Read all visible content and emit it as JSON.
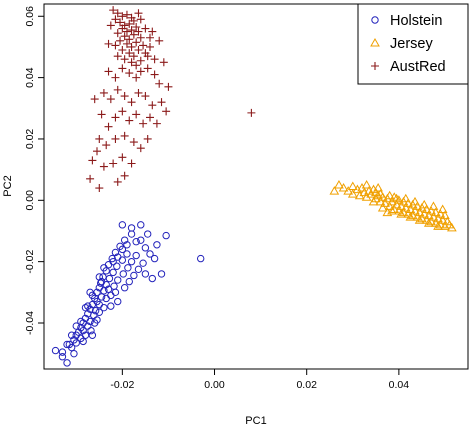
{
  "chart_data": {
    "type": "scatter",
    "title": "",
    "xlabel": "PC1",
    "ylabel": "PC2",
    "xlim": [
      -0.037,
      0.055
    ],
    "ylim": [
      -0.055,
      0.064
    ],
    "x_ticks": [
      "-0.02",
      "0.00",
      "0.02",
      "0.04"
    ],
    "x_tick_values": [
      -0.02,
      0.0,
      0.02,
      0.04
    ],
    "y_ticks": [
      "-0.04",
      "-0.02",
      "0.00",
      "0.02",
      "0.04",
      "0.06"
    ],
    "y_tick_values": [
      -0.04,
      -0.02,
      0.0,
      0.02,
      0.04,
      0.06
    ],
    "grid": false,
    "legend_position": "top-right",
    "series": [
      {
        "name": "Holstein",
        "marker": "circle",
        "color": "#2222bb",
        "points": [
          [
            -0.0345,
            -0.049
          ],
          [
            -0.033,
            -0.051
          ],
          [
            -0.032,
            -0.053
          ],
          [
            -0.033,
            -0.0495
          ],
          [
            -0.0315,
            -0.047
          ],
          [
            -0.031,
            -0.048
          ],
          [
            -0.0305,
            -0.0455
          ],
          [
            -0.03,
            -0.044
          ],
          [
            -0.03,
            -0.0465
          ],
          [
            -0.0295,
            -0.043
          ],
          [
            -0.029,
            -0.0415
          ],
          [
            -0.029,
            -0.045
          ],
          [
            -0.0285,
            -0.04
          ],
          [
            -0.0285,
            -0.0425
          ],
          [
            -0.028,
            -0.044
          ],
          [
            -0.028,
            -0.0385
          ],
          [
            -0.0275,
            -0.037
          ],
          [
            -0.0275,
            -0.041
          ],
          [
            -0.027,
            -0.0355
          ],
          [
            -0.027,
            -0.0395
          ],
          [
            -0.0268,
            -0.0425
          ],
          [
            -0.0265,
            -0.034
          ],
          [
            -0.0262,
            -0.0375
          ],
          [
            -0.026,
            -0.032
          ],
          [
            -0.0258,
            -0.036
          ],
          [
            -0.0255,
            -0.03
          ],
          [
            -0.0255,
            -0.039
          ],
          [
            -0.025,
            -0.0285
          ],
          [
            -0.025,
            -0.034
          ],
          [
            -0.0247,
            -0.027
          ],
          [
            -0.0245,
            -0.0315
          ],
          [
            -0.0242,
            -0.025
          ],
          [
            -0.024,
            -0.0295
          ],
          [
            -0.024,
            -0.035
          ],
          [
            -0.0235,
            -0.023
          ],
          [
            -0.0235,
            -0.0275
          ],
          [
            -0.023,
            -0.021
          ],
          [
            -0.0228,
            -0.0255
          ],
          [
            -0.0225,
            -0.031
          ],
          [
            -0.0222,
            -0.019
          ],
          [
            -0.022,
            -0.0235
          ],
          [
            -0.0218,
            -0.028
          ],
          [
            -0.0215,
            -0.017
          ],
          [
            -0.0212,
            -0.0215
          ],
          [
            -0.021,
            -0.026
          ],
          [
            -0.0205,
            -0.015
          ],
          [
            -0.02,
            -0.0195
          ],
          [
            -0.0198,
            -0.024
          ],
          [
            -0.0195,
            -0.013
          ],
          [
            -0.019,
            -0.0175
          ],
          [
            -0.0188,
            -0.022
          ],
          [
            -0.0185,
            -0.0265
          ],
          [
            -0.018,
            -0.02
          ],
          [
            -0.0175,
            -0.0245
          ],
          [
            -0.017,
            -0.018
          ],
          [
            -0.0165,
            -0.0225
          ],
          [
            -0.016,
            -0.013
          ],
          [
            -0.0155,
            -0.0205
          ],
          [
            -0.015,
            -0.024
          ],
          [
            -0.0145,
            -0.011
          ],
          [
            -0.014,
            -0.0175
          ],
          [
            -0.0135,
            -0.0255
          ],
          [
            -0.0125,
            -0.0145
          ],
          [
            -0.0115,
            -0.024
          ],
          [
            -0.0105,
            -0.0115
          ],
          [
            -0.003,
            -0.019
          ],
          [
            -0.018,
            -0.009
          ],
          [
            -0.02,
            -0.008
          ],
          [
            -0.016,
            -0.008
          ],
          [
            -0.026,
            -0.04
          ],
          [
            -0.029,
            -0.0395
          ],
          [
            -0.03,
            -0.041
          ],
          [
            -0.0275,
            -0.0345
          ],
          [
            -0.0265,
            -0.031
          ],
          [
            -0.0255,
            -0.033
          ],
          [
            -0.0245,
            -0.0265
          ],
          [
            -0.023,
            -0.029
          ],
          [
            -0.022,
            -0.02
          ],
          [
            -0.021,
            -0.0185
          ],
          [
            -0.02,
            -0.016
          ],
          [
            -0.019,
            -0.0145
          ],
          [
            -0.024,
            -0.022
          ],
          [
            -0.025,
            -0.025
          ],
          [
            -0.027,
            -0.03
          ],
          [
            -0.028,
            -0.035
          ],
          [
            -0.031,
            -0.044
          ],
          [
            -0.032,
            -0.047
          ],
          [
            -0.0305,
            -0.05
          ],
          [
            -0.0285,
            -0.046
          ],
          [
            -0.0265,
            -0.044
          ],
          [
            -0.0225,
            -0.0345
          ],
          [
            -0.021,
            -0.033
          ],
          [
            -0.025,
            -0.0365
          ],
          [
            -0.0235,
            -0.032
          ],
          [
            -0.0215,
            -0.03
          ],
          [
            -0.0195,
            -0.0285
          ],
          [
            -0.017,
            -0.0135
          ],
          [
            -0.018,
            -0.011
          ],
          [
            -0.015,
            -0.0155
          ],
          [
            -0.013,
            -0.019
          ]
        ]
      },
      {
        "name": "Jersey",
        "marker": "triangle",
        "color": "#f0a000",
        "points": [
          [
            0.026,
            0.003
          ],
          [
            0.027,
            0.005
          ],
          [
            0.028,
            0.004
          ],
          [
            0.029,
            0.003
          ],
          [
            0.03,
            0.002
          ],
          [
            0.03,
            0.0045
          ],
          [
            0.031,
            0.0035
          ],
          [
            0.0315,
            0.0015
          ],
          [
            0.032,
            0.004
          ],
          [
            0.0325,
            0.0025
          ],
          [
            0.033,
            0.001
          ],
          [
            0.0335,
            0.003
          ],
          [
            0.034,
            0.002
          ],
          [
            0.0345,
            0.0035
          ],
          [
            0.035,
            0.0005
          ],
          [
            0.035,
            0.0025
          ],
          [
            0.0355,
            0.0015
          ],
          [
            0.036,
            -0.0005
          ],
          [
            0.036,
            0.002
          ],
          [
            0.0365,
            0.001
          ],
          [
            0.037,
            -0.001
          ],
          [
            0.0375,
            0.0005
          ],
          [
            0.038,
            0.0015
          ],
          [
            0.038,
            -0.002
          ],
          [
            0.0385,
            -0.0005
          ],
          [
            0.039,
            0.001
          ],
          [
            0.039,
            -0.003
          ],
          [
            0.0395,
            -0.0015
          ],
          [
            0.04,
            0.0
          ],
          [
            0.04,
            -0.0035
          ],
          [
            0.0405,
            -0.002
          ],
          [
            0.041,
            -0.0005
          ],
          [
            0.041,
            -0.004
          ],
          [
            0.0415,
            -0.0025
          ],
          [
            0.042,
            -0.001
          ],
          [
            0.042,
            -0.0045
          ],
          [
            0.0425,
            -0.003
          ],
          [
            0.043,
            -0.0015
          ],
          [
            0.043,
            -0.005
          ],
          [
            0.0435,
            -0.0035
          ],
          [
            0.044,
            -0.002
          ],
          [
            0.044,
            -0.0055
          ],
          [
            0.0445,
            -0.004
          ],
          [
            0.045,
            -0.0025
          ],
          [
            0.045,
            -0.006
          ],
          [
            0.0455,
            -0.0045
          ],
          [
            0.046,
            -0.003
          ],
          [
            0.046,
            -0.0065
          ],
          [
            0.0465,
            -0.005
          ],
          [
            0.047,
            -0.0035
          ],
          [
            0.047,
            -0.007
          ],
          [
            0.0475,
            -0.0055
          ],
          [
            0.048,
            -0.004
          ],
          [
            0.048,
            -0.0075
          ],
          [
            0.0485,
            -0.006
          ],
          [
            0.049,
            -0.0045
          ],
          [
            0.049,
            -0.008
          ],
          [
            0.0495,
            -0.0065
          ],
          [
            0.05,
            -0.005
          ],
          [
            0.05,
            -0.0085
          ],
          [
            0.0505,
            -0.007
          ],
          [
            0.051,
            -0.008
          ],
          [
            0.0515,
            -0.009
          ],
          [
            0.0385,
            -0.0035
          ],
          [
            0.0375,
            -0.004
          ],
          [
            0.0395,
            0.0005
          ],
          [
            0.0405,
            -0.0045
          ],
          [
            0.0425,
            -0.0055
          ],
          [
            0.0445,
            -0.0065
          ],
          [
            0.0465,
            -0.0075
          ],
          [
            0.0455,
            -0.0015
          ],
          [
            0.0435,
            -0.0005
          ],
          [
            0.0415,
            0.0005
          ],
          [
            0.0475,
            -0.002
          ],
          [
            0.0495,
            -0.003
          ],
          [
            0.0485,
            -0.0085
          ],
          [
            0.0345,
            -0.0005
          ],
          [
            0.033,
            0.005
          ],
          [
            0.0355,
            0.004
          ],
          [
            0.0365,
            -0.0025
          ]
        ]
      },
      {
        "name": "AustRed",
        "marker": "plus",
        "color": "#8b1a1a",
        "points": [
          [
            -0.022,
            0.062
          ],
          [
            -0.021,
            0.061
          ],
          [
            -0.02,
            0.06
          ],
          [
            -0.0215,
            0.059
          ],
          [
            -0.019,
            0.0605
          ],
          [
            -0.018,
            0.0595
          ],
          [
            -0.0205,
            0.058
          ],
          [
            -0.0195,
            0.057
          ],
          [
            -0.0185,
            0.0575
          ],
          [
            -0.0175,
            0.0585
          ],
          [
            -0.02,
            0.056
          ],
          [
            -0.019,
            0.055
          ],
          [
            -0.018,
            0.0555
          ],
          [
            -0.017,
            0.0565
          ],
          [
            -0.021,
            0.0545
          ],
          [
            -0.0195,
            0.0535
          ],
          [
            -0.0185,
            0.0525
          ],
          [
            -0.0175,
            0.054
          ],
          [
            -0.0165,
            0.055
          ],
          [
            -0.0205,
            0.052
          ],
          [
            -0.019,
            0.051
          ],
          [
            -0.018,
            0.05
          ],
          [
            -0.017,
            0.0515
          ],
          [
            -0.016,
            0.053
          ],
          [
            -0.0215,
            0.0505
          ],
          [
            -0.02,
            0.049
          ],
          [
            -0.0185,
            0.048
          ],
          [
            -0.0175,
            0.047
          ],
          [
            -0.0165,
            0.049
          ],
          [
            -0.0155,
            0.0505
          ],
          [
            -0.021,
            0.047
          ],
          [
            -0.0195,
            0.046
          ],
          [
            -0.018,
            0.045
          ],
          [
            -0.017,
            0.044
          ],
          [
            -0.016,
            0.0455
          ],
          [
            -0.015,
            0.048
          ],
          [
            -0.014,
            0.05
          ],
          [
            -0.0135,
            0.055
          ],
          [
            -0.012,
            0.052
          ],
          [
            -0.011,
            0.045
          ],
          [
            -0.02,
            0.043
          ],
          [
            -0.0185,
            0.0415
          ],
          [
            -0.017,
            0.04
          ],
          [
            -0.016,
            0.042
          ],
          [
            -0.0145,
            0.043
          ],
          [
            -0.013,
            0.041
          ],
          [
            -0.012,
            0.038
          ],
          [
            -0.0215,
            0.04
          ],
          [
            -0.023,
            0.042
          ],
          [
            -0.024,
            0.035
          ],
          [
            -0.0225,
            0.033
          ],
          [
            -0.021,
            0.036
          ],
          [
            -0.0195,
            0.034
          ],
          [
            -0.018,
            0.032
          ],
          [
            -0.0165,
            0.035
          ],
          [
            -0.015,
            0.034
          ],
          [
            -0.0135,
            0.031
          ],
          [
            -0.014,
            0.027
          ],
          [
            -0.0155,
            0.025
          ],
          [
            -0.017,
            0.028
          ],
          [
            -0.0185,
            0.026
          ],
          [
            -0.02,
            0.029
          ],
          [
            -0.0215,
            0.027
          ],
          [
            -0.023,
            0.024
          ],
          [
            -0.0245,
            0.028
          ],
          [
            -0.025,
            0.02
          ],
          [
            -0.0235,
            0.018
          ],
          [
            -0.0215,
            0.02
          ],
          [
            -0.0195,
            0.021
          ],
          [
            -0.0175,
            0.019
          ],
          [
            -0.016,
            0.017
          ],
          [
            -0.0145,
            0.02
          ],
          [
            -0.02,
            0.014
          ],
          [
            -0.022,
            0.012
          ],
          [
            -0.018,
            0.012
          ],
          [
            -0.024,
            0.011
          ],
          [
            -0.0265,
            0.013
          ],
          [
            -0.025,
            0.004
          ],
          [
            -0.027,
            0.007
          ],
          [
            -0.021,
            0.006
          ],
          [
            -0.0195,
            0.008
          ],
          [
            -0.01,
            0.037
          ],
          [
            -0.0115,
            0.032
          ],
          [
            -0.0105,
            0.029
          ],
          [
            -0.0125,
            0.025
          ],
          [
            -0.023,
            0.051
          ],
          [
            -0.0225,
            0.057
          ],
          [
            -0.0165,
            0.061
          ],
          [
            -0.016,
            0.059
          ],
          [
            -0.015,
            0.056
          ],
          [
            -0.014,
            0.053
          ],
          [
            -0.0145,
            0.047
          ],
          [
            -0.013,
            0.046
          ],
          [
            -0.026,
            0.033
          ],
          [
            -0.0255,
            0.016
          ],
          [
            0.008,
            0.0285
          ]
        ]
      }
    ]
  }
}
